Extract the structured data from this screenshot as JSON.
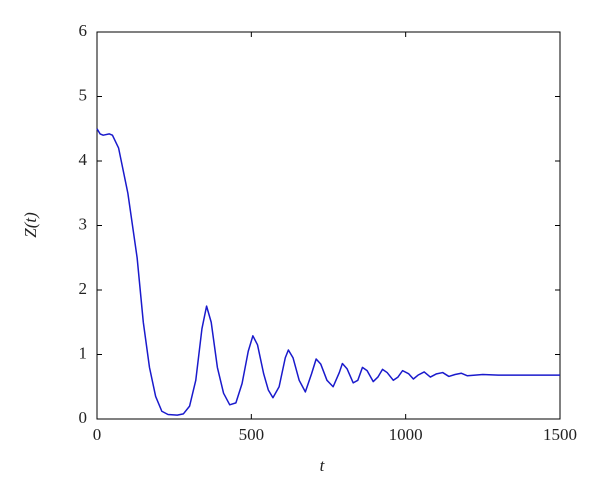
{
  "chart_data": {
    "type": "line",
    "x_label": "t",
    "y_label": "Z(t)",
    "xlim": [
      0,
      1500
    ],
    "xticks": [
      0,
      500,
      1000,
      1500
    ],
    "ylim": [
      0,
      6
    ],
    "yticks": [
      0,
      1,
      2,
      3,
      4,
      5,
      6
    ],
    "grid": false,
    "x": [
      0,
      10,
      20,
      40,
      50,
      70,
      100,
      130,
      150,
      170,
      190,
      210,
      230,
      260,
      280,
      300,
      320,
      340,
      355,
      370,
      390,
      410,
      430,
      450,
      470,
      490,
      505,
      520,
      540,
      555,
      570,
      590,
      610,
      620,
      635,
      655,
      675,
      695,
      710,
      725,
      745,
      765,
      785,
      795,
      810,
      830,
      845,
      860,
      875,
      895,
      910,
      925,
      940,
      960,
      975,
      990,
      1010,
      1025,
      1040,
      1060,
      1080,
      1100,
      1120,
      1140,
      1160,
      1180,
      1200,
      1250,
      1300,
      1500
    ],
    "series": [
      {
        "name": "Z(t)",
        "color": "#1a1acc",
        "values": [
          4.5,
          4.42,
          4.4,
          4.42,
          4.4,
          4.2,
          3.5,
          2.5,
          1.5,
          0.8,
          0.35,
          0.12,
          0.07,
          0.06,
          0.08,
          0.2,
          0.6,
          1.4,
          1.75,
          1.5,
          0.8,
          0.4,
          0.22,
          0.25,
          0.55,
          1.05,
          1.29,
          1.15,
          0.7,
          0.45,
          0.33,
          0.5,
          0.95,
          1.07,
          0.95,
          0.6,
          0.42,
          0.7,
          0.93,
          0.85,
          0.6,
          0.5,
          0.72,
          0.86,
          0.78,
          0.56,
          0.6,
          0.8,
          0.75,
          0.58,
          0.65,
          0.77,
          0.72,
          0.6,
          0.65,
          0.75,
          0.7,
          0.62,
          0.68,
          0.73,
          0.65,
          0.7,
          0.72,
          0.66,
          0.69,
          0.71,
          0.67,
          0.69,
          0.68,
          0.68
        ]
      }
    ]
  }
}
